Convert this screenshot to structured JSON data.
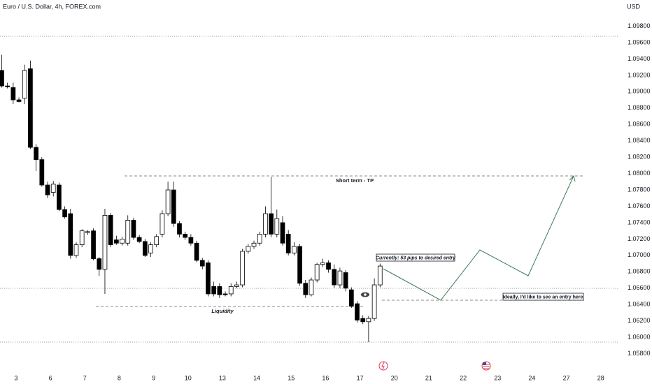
{
  "chart_data": {
    "type": "candlestick",
    "title": "Euro / U.S. Dollar, 4h, FOREX.com",
    "currency": "USD",
    "annotations": [
      "Short term - TP",
      "Liquidity",
      "Currently: 53 pips to desired entry",
      "Ideally, I'd like to see an entry here"
    ],
    "up_color": "#ffffff",
    "down_color": "#000000",
    "x": [
      0,
      1,
      2,
      3,
      4,
      5,
      6,
      7,
      8,
      9,
      10,
      11,
      12,
      13,
      14,
      15,
      16,
      17,
      18,
      19,
      20,
      21,
      22,
      23,
      24,
      25,
      26,
      27,
      28,
      29,
      30,
      31,
      32,
      33,
      34,
      35,
      36,
      37,
      38,
      39,
      40,
      41,
      42,
      43,
      44,
      45,
      46,
      47,
      48,
      49,
      50,
      51,
      52,
      53,
      54,
      55,
      56,
      57,
      58,
      59,
      60,
      61,
      62,
      63,
      64,
      65,
      66
    ],
    "open": [
      1.0926,
      1.0907,
      1.0905,
      1.089,
      1.0892,
      1.0928,
      1.0832,
      1.0817,
      1.0786,
      1.0777,
      1.0786,
      1.0756,
      1.0751,
      1.07,
      1.0713,
      1.0728,
      1.073,
      1.0696,
      1.0683,
      1.0749,
      1.0719,
      1.0715,
      1.0715,
      1.0743,
      1.0722,
      1.0717,
      1.0703,
      1.0713,
      1.0726,
      1.0751,
      1.078,
      1.0739,
      1.0726,
      1.0722,
      1.0715,
      1.0694,
      1.0691,
      1.0662,
      1.0662,
      1.0653,
      1.0653,
      1.0662,
      1.0664,
      1.0705,
      1.0711,
      1.0715,
      1.0726,
      1.0751,
      1.0726,
      1.074,
      1.0726,
      1.0703,
      1.0711,
      1.0666,
      1.0652,
      1.067,
      1.0689,
      1.0691,
      1.0683,
      1.0664,
      1.0679,
      1.0658,
      1.0641,
      1.0623,
      1.0619,
      1.0623,
      1.0664
    ],
    "high": [
      1.0945,
      1.0911,
      1.0911,
      1.0893,
      1.0933,
      1.0938,
      1.0836,
      1.082,
      1.079,
      1.0791,
      1.0789,
      1.076,
      1.0757,
      1.0716,
      1.0732,
      1.0731,
      1.0733,
      1.0698,
      1.0757,
      1.0752,
      1.0724,
      1.0723,
      1.0749,
      1.0746,
      1.0725,
      1.072,
      1.0716,
      1.0726,
      1.0755,
      1.079,
      1.079,
      1.0742,
      1.0729,
      1.0726,
      1.0718,
      1.0697,
      1.0694,
      1.0668,
      1.0666,
      1.0656,
      1.0666,
      1.0668,
      1.0708,
      1.0714,
      1.0718,
      1.0729,
      1.076,
      1.0796,
      1.0756,
      1.0748,
      1.0731,
      1.0716,
      1.0714,
      1.067,
      1.0673,
      1.0691,
      1.0696,
      1.0694,
      1.0689,
      1.0685,
      1.0682,
      1.0661,
      1.0644,
      1.0627,
      1.0626,
      1.0672,
      1.069
    ],
    "low": [
      1.0905,
      1.0904,
      1.0885,
      1.0887,
      1.0885,
      1.083,
      1.0803,
      1.0784,
      1.077,
      1.0772,
      1.0754,
      1.0745,
      1.0696,
      1.0697,
      1.071,
      1.0725,
      1.0694,
      1.0675,
      1.0653,
      1.071,
      1.0713,
      1.0712,
      1.0712,
      1.0719,
      1.0715,
      1.0698,
      1.0698,
      1.071,
      1.0722,
      1.0748,
      1.0735,
      1.0722,
      1.0719,
      1.0712,
      1.0692,
      1.0683,
      1.065,
      1.065,
      1.0648,
      1.065,
      1.065,
      1.066,
      1.0661,
      1.0702,
      1.0708,
      1.0712,
      1.0722,
      1.0722,
      1.0722,
      1.0712,
      1.07,
      1.07,
      1.0663,
      1.0648,
      1.065,
      1.0667,
      1.0686,
      1.0679,
      1.066,
      1.066,
      1.0656,
      1.0636,
      1.0618,
      1.0616,
      1.0594,
      1.062,
      1.0661
    ],
    "close": [
      1.0907,
      1.0906,
      1.089,
      1.0888,
      1.0926,
      1.0832,
      1.0817,
      1.0786,
      1.0774,
      1.0787,
      1.0756,
      1.0747,
      1.07,
      1.0713,
      1.073,
      1.0729,
      1.0696,
      1.0683,
      1.0749,
      1.0713,
      1.0715,
      1.072,
      1.0743,
      1.0722,
      1.0717,
      1.07,
      1.0713,
      1.0723,
      1.0751,
      1.078,
      1.0739,
      1.0726,
      1.0722,
      1.0715,
      1.0694,
      1.0687,
      1.0653,
      1.0653,
      1.0652,
      1.0652,
      1.0662,
      1.0664,
      1.0705,
      1.0711,
      1.0715,
      1.0726,
      1.0751,
      1.0726,
      1.0745,
      1.0715,
      1.0703,
      1.0711,
      1.0666,
      1.0652,
      1.067,
      1.0689,
      1.0691,
      1.0683,
      1.0664,
      1.0681,
      1.066,
      1.0638,
      1.0621,
      1.0619,
      1.0623,
      1.0664,
      1.0687
    ],
    "xlim": [
      -0.3,
      107.7
    ],
    "xticks": [
      {
        "value": 2.5,
        "label": "3"
      },
      {
        "value": 8.5,
        "label": "6"
      },
      {
        "value": 14.5,
        "label": "7"
      },
      {
        "value": 20.5,
        "label": "8"
      },
      {
        "value": 26.5,
        "label": "9"
      },
      {
        "value": 32.5,
        "label": "10"
      },
      {
        "value": 38.5,
        "label": "13"
      },
      {
        "value": 44.5,
        "label": "14"
      },
      {
        "value": 50.5,
        "label": "15"
      },
      {
        "value": 56.5,
        "label": "16"
      },
      {
        "value": 62.5,
        "label": "17"
      },
      {
        "value": 68.5,
        "label": "20"
      },
      {
        "value": 74.5,
        "label": "21"
      },
      {
        "value": 80.5,
        "label": "22"
      },
      {
        "value": 86.5,
        "label": "23"
      },
      {
        "value": 92.5,
        "label": "24"
      },
      {
        "value": 98.5,
        "label": "27"
      },
      {
        "value": 104.5,
        "label": "28"
      }
    ],
    "ylim": [
      1.056,
      1.1012
    ],
    "yticks": [
      {
        "value": 1.058,
        "label": "1.05800"
      },
      {
        "value": 1.06,
        "label": "1.06000"
      },
      {
        "value": 1.062,
        "label": "1.06200"
      },
      {
        "value": 1.064,
        "label": "1.06400"
      },
      {
        "value": 1.066,
        "label": "1.06600"
      },
      {
        "value": 1.068,
        "label": "1.06800"
      },
      {
        "value": 1.07,
        "label": "1.07000"
      },
      {
        "value": 1.072,
        "label": "1.07200"
      },
      {
        "value": 1.074,
        "label": "1.07400"
      },
      {
        "value": 1.076,
        "label": "1.07600"
      },
      {
        "value": 1.078,
        "label": "1.07800"
      },
      {
        "value": 1.08,
        "label": "1.08000"
      },
      {
        "value": 1.082,
        "label": "1.08200"
      },
      {
        "value": 1.084,
        "label": "1.08400"
      },
      {
        "value": 1.086,
        "label": "1.08600"
      },
      {
        "value": 1.088,
        "label": "1.08800"
      },
      {
        "value": 1.09,
        "label": "1.09000"
      },
      {
        "value": 1.092,
        "label": "1.09200"
      },
      {
        "value": 1.094,
        "label": "1.09400"
      },
      {
        "value": 1.096,
        "label": "1.09600"
      },
      {
        "value": 1.098,
        "label": "1.09800"
      }
    ],
    "grid": false
  }
}
